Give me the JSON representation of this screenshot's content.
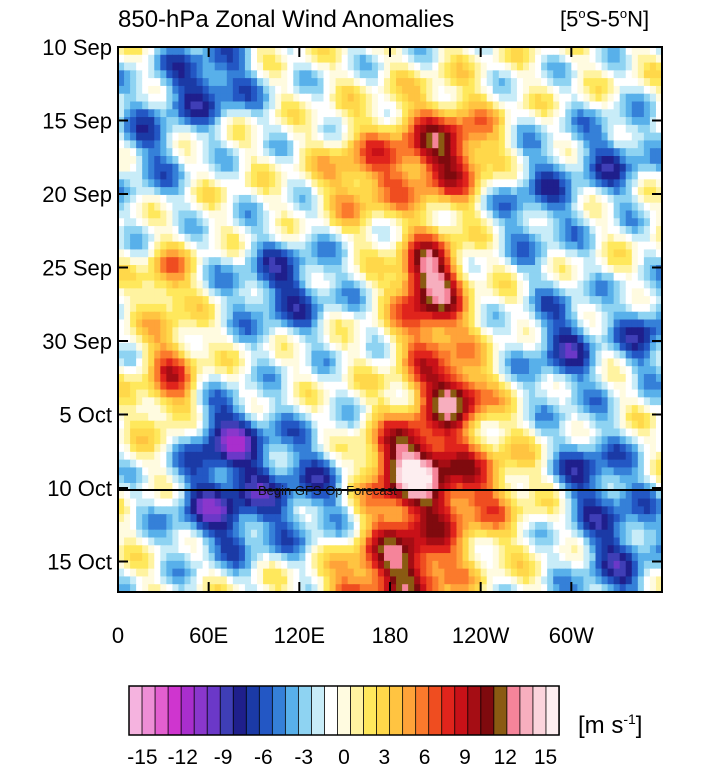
{
  "chart_data": {
    "type": "heatmap",
    "title": "850-hPa Zonal Wind Anomalies",
    "region": {
      "open": "[5",
      "lat1": "o",
      "mid": "S-5",
      "lat2": "o",
      "close": "N]"
    },
    "units": {
      "base": "[m s",
      "exp": "-1",
      "close": "]"
    },
    "y_ticks": [
      "10 Sep",
      "15 Sep",
      "20 Sep",
      "25 Sep",
      "30 Sep",
      "5 Oct",
      "10 Oct",
      "15 Oct"
    ],
    "x_ticks": [
      "0",
      "60E",
      "120E",
      "180",
      "120W",
      "60W"
    ],
    "x_tick_values": [
      0,
      60,
      120,
      180,
      240,
      300
    ],
    "x_range": [
      0,
      360
    ],
    "annotation": "Begin GFS Op Forecast",
    "colorbar": {
      "levels": [
        -16,
        -15,
        -14,
        -13,
        -12,
        -11,
        -10,
        -9,
        -8,
        -7,
        -6,
        -5,
        -4,
        -3,
        -2,
        -1,
        0,
        1,
        2,
        3,
        4,
        5,
        6,
        7,
        8,
        9,
        10,
        11,
        12,
        13,
        14,
        15,
        16
      ],
      "colors": [
        "#f5b3df",
        "#ee8ed6",
        "#e35fd0",
        "#cf35cf",
        "#a92ecd",
        "#8a37cc",
        "#6b38c8",
        "#3f3eb6",
        "#1f1f8c",
        "#1b3aa6",
        "#2357c4",
        "#3580d8",
        "#58b0ea",
        "#8ed3f2",
        "#c8ecf8",
        "#ffffff",
        "#fffbe0",
        "#fff3a0",
        "#ffe85c",
        "#ffd84a",
        "#ffc441",
        "#ffa339",
        "#fb7a2c",
        "#ef4d20",
        "#e0241c",
        "#c81118",
        "#a50d14",
        "#7f0a0e",
        "#8a5a12",
        "#f5849a",
        "#f7aebe",
        "#fbd4dc",
        "#fdeef0"
      ],
      "labels": [
        "-15",
        "-12",
        "-9",
        "-6",
        "-3",
        "0",
        "3",
        "6",
        "9",
        "12",
        "15"
      ],
      "label_values": [
        -15,
        -12,
        -9,
        -6,
        -3,
        0,
        3,
        6,
        9,
        12,
        15
      ]
    }
  }
}
